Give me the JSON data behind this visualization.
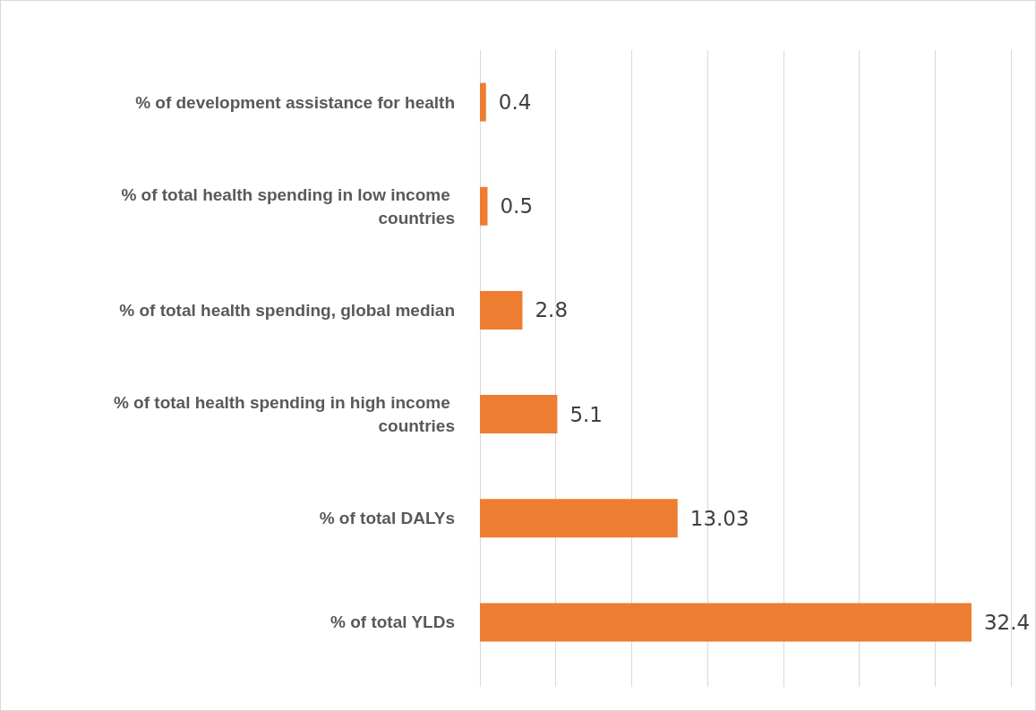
{
  "chart_data": {
    "type": "bar",
    "orientation": "horizontal",
    "categories": [
      "% of development assistance for health",
      "% of total health spending in low income countries",
      "% of total health spending, global median",
      "% of total health spending in high income countries",
      "% of total DALYs",
      "% of total YLDs"
    ],
    "values": [
      0.4,
      0.5,
      2.8,
      5.1,
      13.03,
      32.4
    ],
    "color": "#ed7d31",
    "xlim": [
      0,
      35
    ],
    "xticks": [
      {
        "value": 0,
        "label": null
      },
      {
        "value": 5,
        "label": null
      },
      {
        "value": 10,
        "label": null
      },
      {
        "value": 15,
        "label": null
      },
      {
        "value": 20,
        "label": null
      },
      {
        "value": 25,
        "label": null
      },
      {
        "value": 30,
        "label": null
      },
      {
        "value": 35,
        "label": null
      }
    ],
    "tick_labels": "y",
    "grid": "x",
    "data_labels": true
  }
}
